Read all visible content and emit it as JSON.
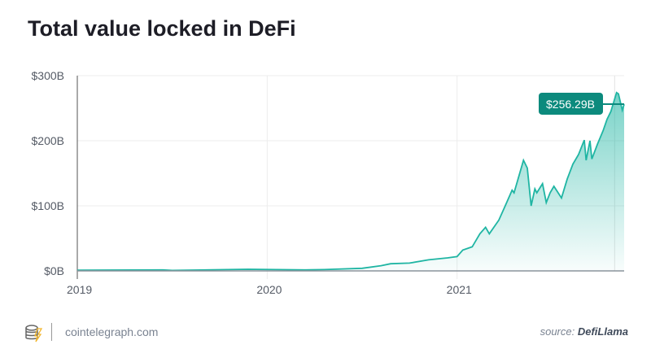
{
  "title": "Total value locked in DeFi",
  "footer": {
    "site": "cointelegraph.com",
    "source_prefix": "source:",
    "source_name": "DefiLlama"
  },
  "colors": {
    "line": "#1fb5a3",
    "label_bg": "#0c8a7d"
  },
  "chart_data": {
    "type": "area",
    "title": "Total value locked in DeFi",
    "xlabel": "",
    "ylabel": "",
    "ylim": [
      0,
      300
    ],
    "xlim": [
      2019.0,
      2021.88
    ],
    "y_ticks": [
      {
        "v": 0,
        "label": "$0B"
      },
      {
        "v": 100,
        "label": "$100B"
      },
      {
        "v": 200,
        "label": "$200B"
      },
      {
        "v": 300,
        "label": "$300B"
      }
    ],
    "x_ticks": [
      {
        "v": 2019,
        "label": "2019"
      },
      {
        "v": 2020,
        "label": "2020"
      },
      {
        "v": 2021,
        "label": "2021"
      }
    ],
    "current_label": "$256.29B",
    "current_value": 256.29,
    "current_x": 2021.83,
    "x": [
      2019.0,
      2019.45,
      2019.5,
      2019.9,
      2020.2,
      2020.3,
      2020.5,
      2020.6,
      2020.65,
      2020.75,
      2020.85,
      2020.95,
      2021.0,
      2021.03,
      2021.08,
      2021.12,
      2021.15,
      2021.17,
      2021.22,
      2021.26,
      2021.29,
      2021.3,
      2021.35,
      2021.37,
      2021.39,
      2021.41,
      2021.42,
      2021.45,
      2021.47,
      2021.49,
      2021.51,
      2021.55,
      2021.58,
      2021.61,
      2021.64,
      2021.67,
      2021.68,
      2021.7,
      2021.71,
      2021.74,
      2021.77,
      2021.79,
      2021.81,
      2021.84,
      2021.85,
      2021.87,
      2021.88
    ],
    "values": [
      1,
      1.5,
      0.8,
      2.5,
      1.5,
      2,
      4,
      8,
      11,
      12,
      17,
      20,
      22,
      32,
      37,
      57,
      67,
      57,
      78,
      104,
      124,
      120,
      170,
      158,
      100,
      126,
      120,
      134,
      105,
      120,
      130,
      112,
      141,
      164,
      179,
      201,
      170,
      200,
      172,
      195,
      216,
      233,
      245,
      274,
      272,
      247,
      256
    ]
  }
}
